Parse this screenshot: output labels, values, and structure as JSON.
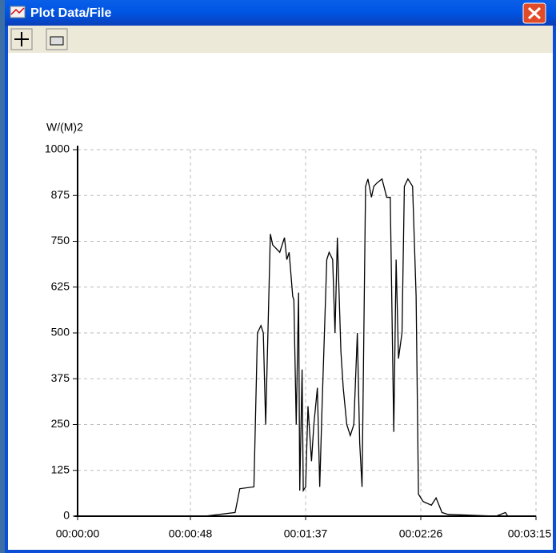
{
  "window": {
    "title": "Plot Data/File"
  },
  "chart_data": {
    "type": "line",
    "ylabel": "W/(M)2",
    "xlim": [
      0,
      195
    ],
    "xticks": [
      {
        "value": 0,
        "label": "00:00:00"
      },
      {
        "value": 48,
        "label": "00:00:48"
      },
      {
        "value": 97,
        "label": "00:01:37"
      },
      {
        "value": 146,
        "label": "00:02:26"
      },
      {
        "value": 195,
        "label": "00:03:15"
      }
    ],
    "ylim": [
      0,
      1000
    ],
    "yticks": [
      0,
      125,
      250,
      375,
      500,
      625,
      750,
      875,
      1000
    ],
    "grid": true,
    "series": [
      {
        "color": "#000000",
        "x": [
          0,
          54,
          67,
          69,
          75,
          76.5,
          78,
          79,
          80,
          82,
          83,
          86,
          88,
          89,
          90,
          91.5,
          92,
          93,
          94,
          94.5,
          95.5,
          96,
          97,
          98,
          99.5,
          100.5,
          102,
          103,
          104,
          105,
          106,
          107,
          108.5,
          109.5,
          110.5,
          112,
          113,
          114.5,
          116,
          117.5,
          119,
          120,
          121,
          122.5,
          123.5,
          125,
          126,
          127.5,
          129.5,
          131.5,
          133,
          134.5,
          135.5,
          136.5,
          138,
          139,
          140.5,
          142.5,
          144,
          145,
          147,
          150.5,
          152.5,
          155,
          157.5,
          178,
          182,
          183,
          195
        ],
        "values": [
          0,
          0,
          10,
          75,
          80,
          500,
          520,
          500,
          250,
          770,
          740,
          720,
          760,
          700,
          720,
          600,
          590,
          250,
          610,
          70,
          400,
          70,
          80,
          300,
          150,
          250,
          350,
          80,
          300,
          500,
          700,
          720,
          700,
          500,
          760,
          450,
          350,
          250,
          220,
          250,
          500,
          200,
          80,
          900,
          920,
          870,
          900,
          910,
          920,
          870,
          870,
          230,
          700,
          430,
          500,
          900,
          920,
          900,
          600,
          60,
          40,
          30,
          50,
          10,
          5,
          0,
          10,
          0,
          0
        ]
      }
    ]
  }
}
